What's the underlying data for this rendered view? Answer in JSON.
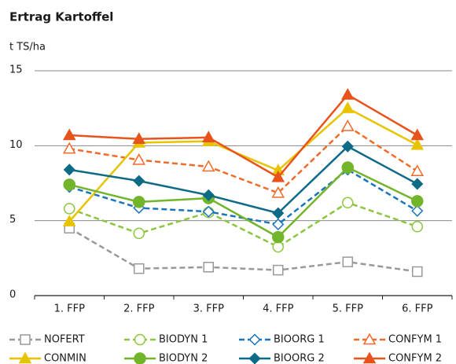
{
  "chart_data": {
    "type": "line",
    "title": "Ertrag Kartoffel",
    "y_label": "t TS/ha",
    "categories": [
      "1. FFP",
      "2. FFP",
      "3. FFP",
      "4. FFP",
      "5. FFP",
      "6. FFP"
    ],
    "ylim": [
      0,
      15
    ],
    "yticks": [
      0,
      5,
      10,
      15
    ],
    "grid": true,
    "legend": "bottom",
    "series": [
      {
        "name": "NOFERT",
        "color": "#999999",
        "line_style": "dashed",
        "marker": "square",
        "filled": false,
        "values": [
          4.5,
          1.8,
          1.9,
          1.7,
          2.25,
          1.6
        ]
      },
      {
        "name": "BIODYN 1",
        "color": "#8cc63f",
        "line_style": "dashed",
        "marker": "circle",
        "filled": false,
        "values": [
          5.8,
          4.15,
          5.55,
          3.25,
          6.2,
          4.6
        ]
      },
      {
        "name": "BIOORG 1",
        "color": "#1b75bb",
        "line_style": "dashed",
        "marker": "diamond",
        "filled": false,
        "values": [
          7.25,
          5.85,
          5.6,
          4.75,
          8.4,
          5.65
        ]
      },
      {
        "name": "CONFYM 1",
        "color": "#f26a2a",
        "line_style": "dashed",
        "marker": "triangle",
        "filled": false,
        "values": [
          9.8,
          9.05,
          8.6,
          6.85,
          11.3,
          8.3
        ]
      },
      {
        "name": "CONMIN",
        "color": "#e8c400",
        "line_style": "solid",
        "marker": "triangle",
        "filled": true,
        "values": [
          4.95,
          10.2,
          10.3,
          8.35,
          12.5,
          10.05
        ]
      },
      {
        "name": "BIODYN 2",
        "color": "#72b42a",
        "line_style": "solid",
        "marker": "circle",
        "filled": true,
        "values": [
          7.4,
          6.25,
          6.5,
          3.9,
          8.55,
          6.3
        ]
      },
      {
        "name": "BIOORG 2",
        "color": "#0d6b87",
        "line_style": "solid",
        "marker": "diamond",
        "filled": true,
        "values": [
          8.4,
          7.65,
          6.7,
          5.5,
          9.95,
          7.45
        ]
      },
      {
        "name": "CONFYM 2",
        "color": "#e8531c",
        "line_style": "solid",
        "marker": "triangle",
        "filled": true,
        "values": [
          10.7,
          10.45,
          10.55,
          7.9,
          13.4,
          10.7
        ]
      }
    ]
  }
}
